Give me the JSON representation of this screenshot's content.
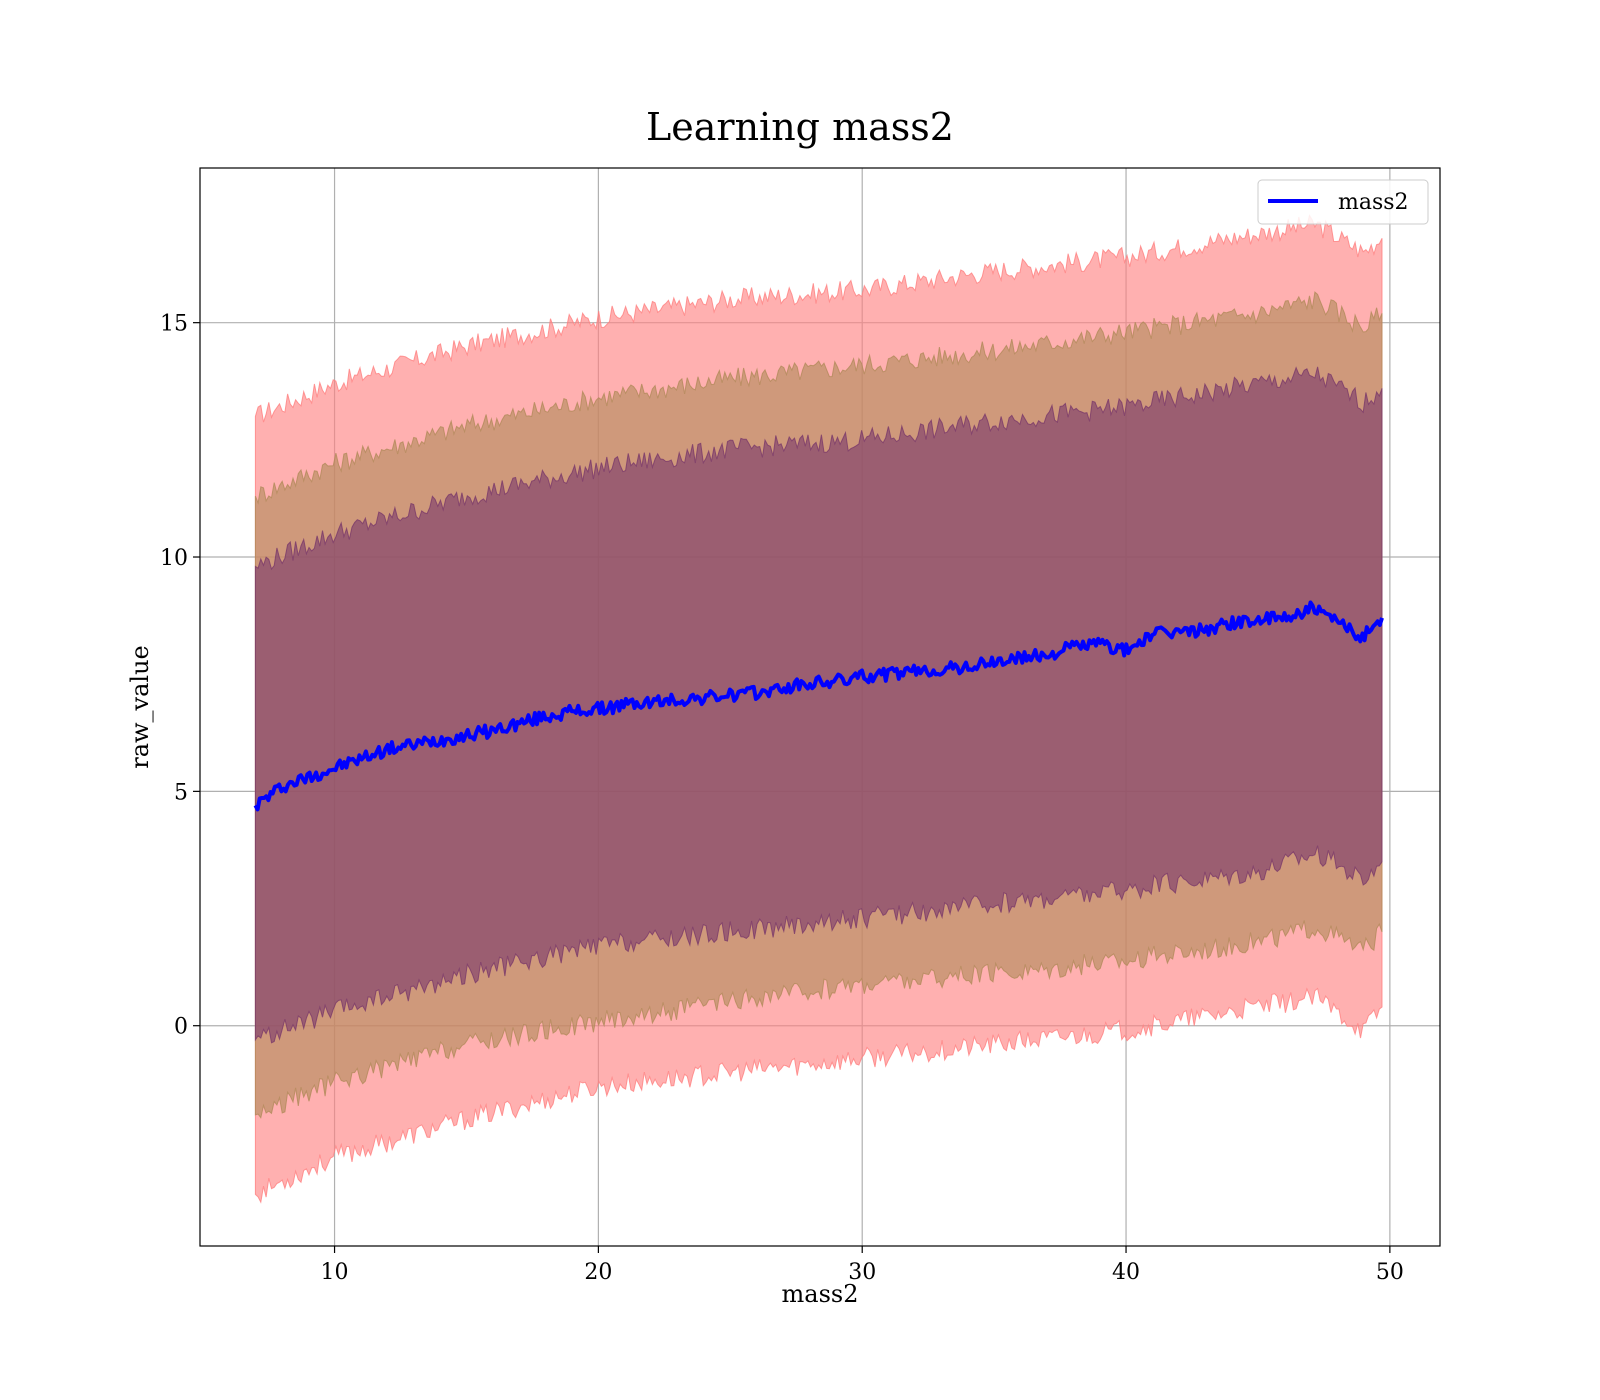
{
  "chart_data": {
    "type": "line",
    "title": "Learning mass2",
    "xlabel": "mass2",
    "ylabel": "raw_value",
    "xlim": [
      4.9,
      51.9
    ],
    "ylim": [
      -4.7,
      18.3
    ],
    "xticks": [
      10,
      20,
      30,
      40,
      50
    ],
    "yticks": [
      0,
      5,
      10,
      15
    ],
    "grid": true,
    "legend": {
      "position": "top-right",
      "entries": [
        "mass2"
      ]
    },
    "series": [
      {
        "name": "mass2",
        "style": "line",
        "color": "#0000ff",
        "x": [
          7,
          8,
          9,
          10,
          11,
          12,
          13,
          14,
          15,
          16,
          17,
          18,
          19,
          20,
          21,
          22,
          23,
          24,
          25,
          26,
          27,
          28,
          29,
          30,
          31,
          32,
          33,
          34,
          35,
          36,
          37,
          38,
          39,
          40,
          41,
          42,
          43,
          44,
          45,
          46,
          47,
          48,
          49,
          49.7
        ],
        "values": [
          4.7,
          5.1,
          5.3,
          5.5,
          5.7,
          5.9,
          6.0,
          6.1,
          6.2,
          6.3,
          6.45,
          6.6,
          6.7,
          6.75,
          6.85,
          6.9,
          6.95,
          7.0,
          7.05,
          7.1,
          7.2,
          7.3,
          7.35,
          7.45,
          7.5,
          7.55,
          7.6,
          7.65,
          7.75,
          7.85,
          7.9,
          8.1,
          8.15,
          8.0,
          8.35,
          8.4,
          8.45,
          8.6,
          8.65,
          8.7,
          8.9,
          8.6,
          8.3,
          8.7
        ]
      }
    ],
    "bands": [
      {
        "color": "#ff7f7f",
        "x": [
          7,
          10,
          15,
          20,
          25,
          30,
          35,
          40,
          45,
          47.2,
          49,
          49.7
        ],
        "upper": [
          13.0,
          13.7,
          14.5,
          15.1,
          15.5,
          15.7,
          16.1,
          16.4,
          16.9,
          17.1,
          16.5,
          16.8
        ],
        "lower": [
          -3.6,
          -2.8,
          -2.0,
          -1.3,
          -1.0,
          -0.7,
          -0.4,
          -0.1,
          0.4,
          0.6,
          -0.1,
          0.4
        ]
      },
      {
        "color": "#b28a5a",
        "x": [
          7,
          10,
          15,
          20,
          25,
          30,
          35,
          40,
          45,
          47.2,
          49,
          49.7
        ],
        "upper": [
          11.3,
          12.0,
          12.8,
          13.4,
          13.8,
          14.1,
          14.4,
          14.8,
          15.2,
          15.5,
          14.9,
          15.2
        ],
        "lower": [
          -1.9,
          -1.2,
          -0.4,
          0.1,
          0.5,
          0.9,
          1.1,
          1.4,
          1.8,
          2.1,
          1.6,
          2.0
        ]
      },
      {
        "color": "#7a3a6a",
        "x": [
          7,
          10,
          15,
          20,
          25,
          30,
          35,
          40,
          45,
          47.2,
          49,
          49.7
        ],
        "upper": [
          9.8,
          10.5,
          11.3,
          11.9,
          12.3,
          12.5,
          12.9,
          13.2,
          13.7,
          13.9,
          13.3,
          13.6
        ],
        "lower": [
          -0.3,
          0.3,
          1.1,
          1.7,
          2.0,
          2.3,
          2.6,
          2.9,
          3.3,
          3.7,
          3.1,
          3.5
        ]
      }
    ]
  }
}
